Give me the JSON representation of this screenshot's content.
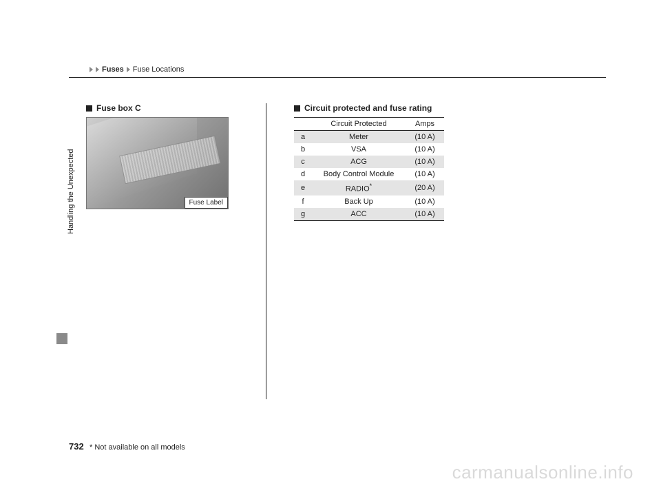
{
  "breadcrumb": {
    "part1": "Fuses",
    "part2": "Fuse Locations"
  },
  "leftHeading": "Fuse box C",
  "fuseLabel": "Fuse Label",
  "rightHeading": "Circuit protected and fuse rating",
  "tableHeader": {
    "col2": "Circuit Protected",
    "col3": "Amps"
  },
  "rows": [
    {
      "id": "a",
      "circ": "Meter",
      "amp": "(10 A)",
      "shade": true,
      "star": false
    },
    {
      "id": "b",
      "circ": "VSA",
      "amp": "(10 A)",
      "shade": false,
      "star": false
    },
    {
      "id": "c",
      "circ": "ACG",
      "amp": "(10 A)",
      "shade": true,
      "star": false
    },
    {
      "id": "d",
      "circ": "Body Control Module",
      "amp": "(10 A)",
      "shade": false,
      "star": false
    },
    {
      "id": "e",
      "circ": "RADIO",
      "amp": "(20 A)",
      "shade": true,
      "star": true
    },
    {
      "id": "f",
      "circ": "Back Up",
      "amp": "(10 A)",
      "shade": false,
      "star": false
    },
    {
      "id": "g",
      "circ": "ACC",
      "amp": "(10 A)",
      "shade": true,
      "star": false
    }
  ],
  "sideLabel": "Handling the Unexpected",
  "pageNumber": "732",
  "footnote": "* Not available on all models",
  "watermark": "carmanualsonline.info"
}
